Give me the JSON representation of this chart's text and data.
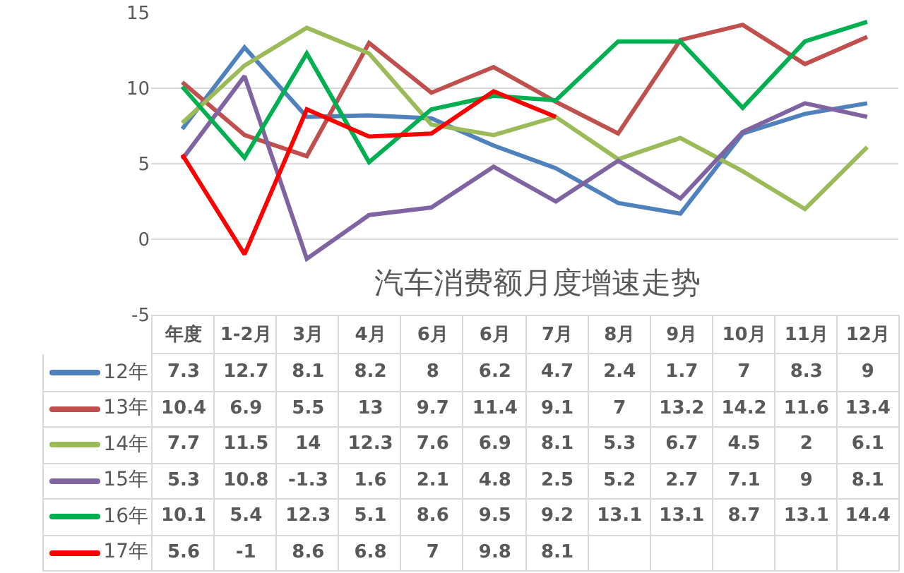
{
  "chart_data": {
    "type": "line",
    "title": "汽车消费额月度增速走势",
    "categories": [
      "年度",
      "1-2月",
      "3月",
      "4月",
      "6月",
      "6月",
      "7月",
      "8月",
      "9月",
      "10月",
      "11月",
      "12月"
    ],
    "series": [
      {
        "name": "12年",
        "color": "#4f81bd",
        "values": [
          7.3,
          12.7,
          8.1,
          8.2,
          8,
          6.2,
          4.7,
          2.4,
          1.7,
          7,
          8.3,
          9
        ]
      },
      {
        "name": "13年",
        "color": "#c0504d",
        "values": [
          10.4,
          6.9,
          5.5,
          13,
          9.7,
          11.4,
          9.1,
          7,
          13.2,
          14.2,
          11.6,
          13.4
        ]
      },
      {
        "name": "14年",
        "color": "#9bbb59",
        "values": [
          7.7,
          11.5,
          14,
          12.3,
          7.6,
          6.9,
          8.1,
          5.3,
          6.7,
          4.5,
          2,
          6.1
        ]
      },
      {
        "name": "15年",
        "color": "#8064a2",
        "values": [
          5.3,
          10.8,
          -1.3,
          1.6,
          2.1,
          4.8,
          2.5,
          5.2,
          2.7,
          7.1,
          9,
          8.1
        ]
      },
      {
        "name": "16年",
        "color": "#00b050",
        "values": [
          10.1,
          5.4,
          12.3,
          5.1,
          8.6,
          9.5,
          9.2,
          13.1,
          13.1,
          8.7,
          13.1,
          14.4
        ]
      },
      {
        "name": "17年",
        "color": "#ff0000",
        "values": [
          5.6,
          -1,
          8.6,
          6.8,
          7,
          9.8,
          8.1,
          null,
          null,
          null,
          null,
          null
        ]
      }
    ],
    "ylim": [
      -5,
      15
    ],
    "yticks": [
      -5,
      0,
      5,
      10,
      15
    ],
    "grid": "y",
    "legend": "bottom",
    "data_labels": true
  }
}
